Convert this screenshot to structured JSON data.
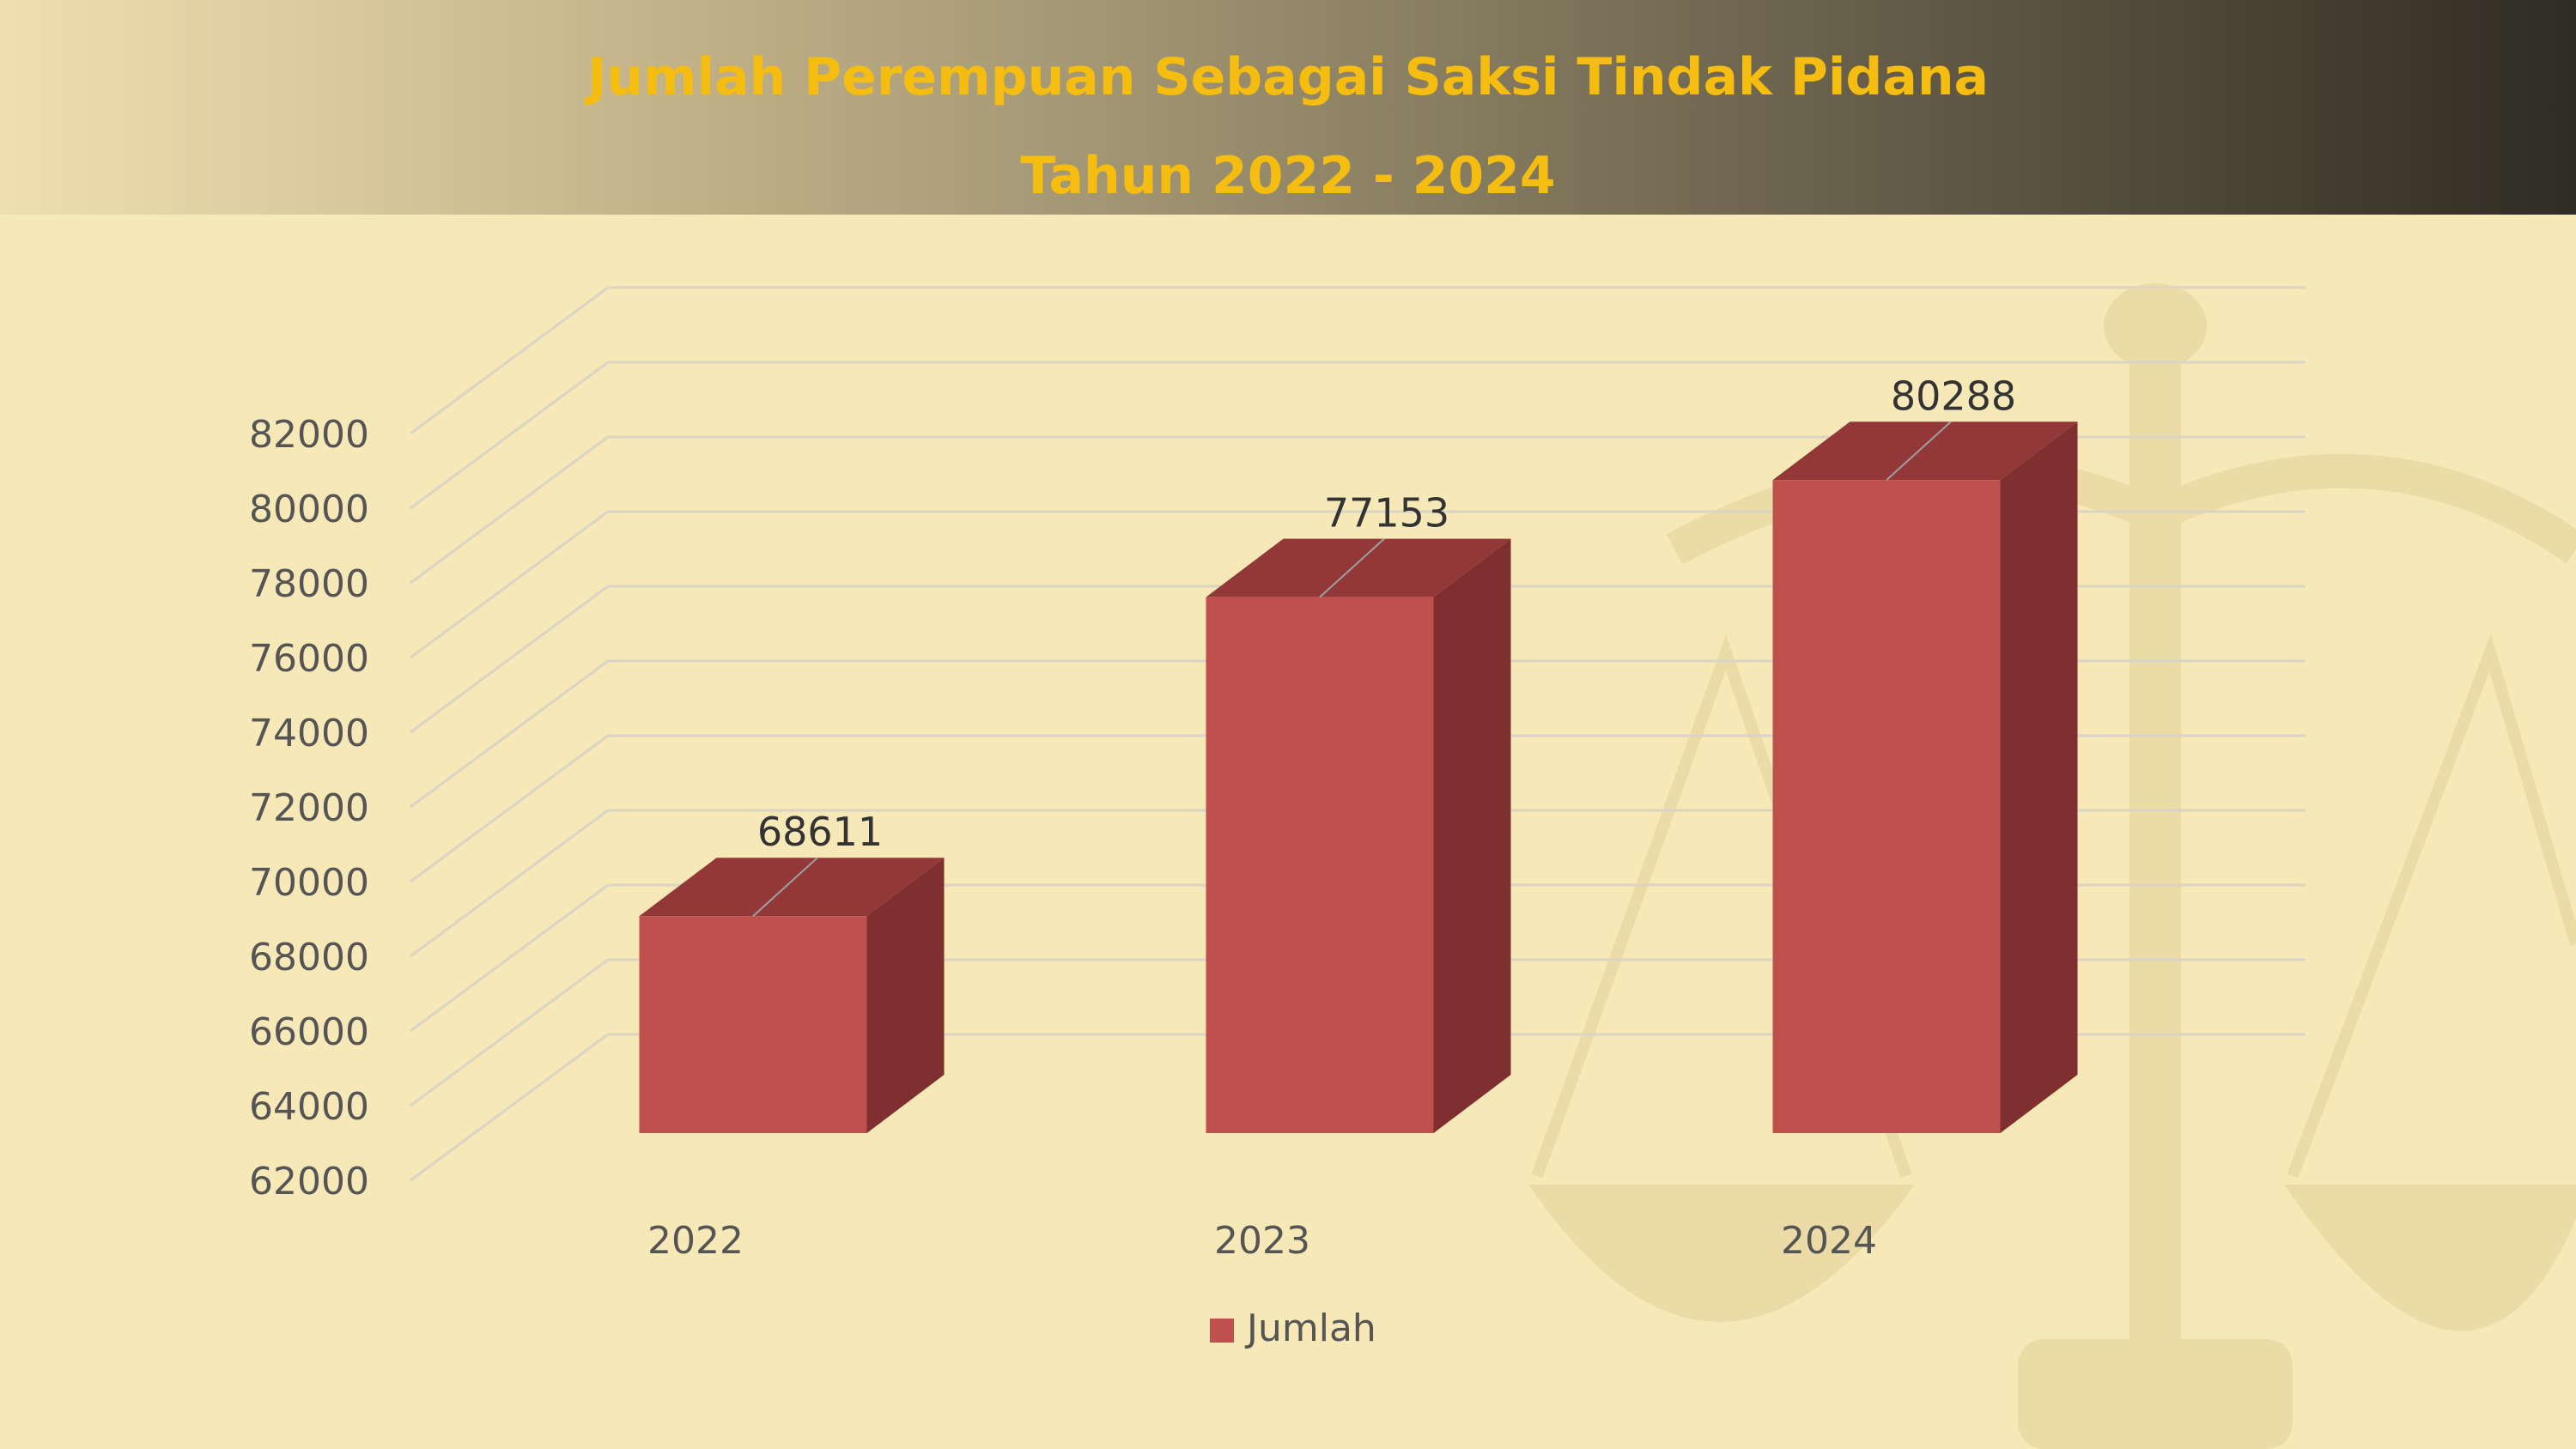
{
  "title": {
    "line1": "Jumlah Perempuan Sebagai Saksi Tindak Pidana",
    "line2": "Tahun 2022 - 2024"
  },
  "chart_data": {
    "type": "bar",
    "categories": [
      "2022",
      "2023",
      "2024"
    ],
    "series": [
      {
        "name": "Jumlah",
        "values": [
          68611,
          77153,
          80288
        ],
        "color": "#c0504d"
      }
    ],
    "data_labels": [
      "68611",
      "77153",
      "80288"
    ],
    "ylim": [
      62000,
      82000
    ],
    "yticks": [
      62000,
      64000,
      66000,
      68000,
      70000,
      72000,
      74000,
      76000,
      78000,
      80000,
      82000
    ],
    "ytick_labels": [
      "62000",
      "64000",
      "66000",
      "68000",
      "70000",
      "72000",
      "74000",
      "76000",
      "78000",
      "80000",
      "82000"
    ],
    "grid": true,
    "legend": "bottom",
    "style": "3d-column"
  },
  "colors": {
    "header_title": "#f4bd10",
    "bar_front": "#c0504d",
    "bar_side": "#7f2f2f",
    "bar_top": "#923838",
    "background": "#f7e8b8"
  }
}
